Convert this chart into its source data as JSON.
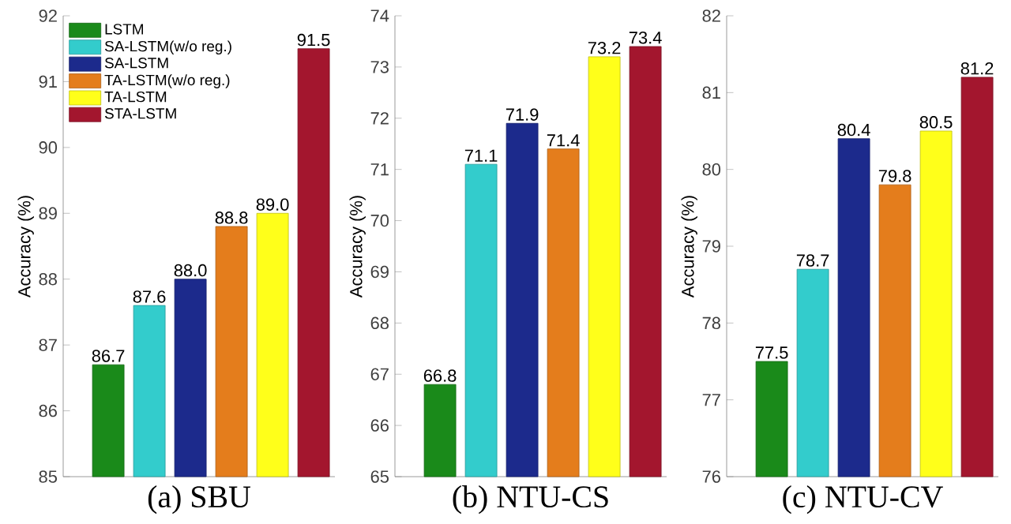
{
  "chart_data": [
    {
      "type": "bar",
      "title": "(a) SBU",
      "ylabel": "Accuracy (%)",
      "categories": [
        null
      ],
      "ylim": [
        85,
        92
      ],
      "yticks": [
        85,
        86,
        87,
        88,
        89,
        90,
        91,
        92
      ],
      "legend": "top left",
      "series": [
        {
          "name": "LSTM",
          "color": "#1a8a1a",
          "values": [
            86.7
          ],
          "value_labels": [
            "86.7"
          ]
        },
        {
          "name": "SA-LSTM(w/o reg.)",
          "color": "#33cccc",
          "values": [
            87.6
          ],
          "value_labels": [
            "87.6"
          ]
        },
        {
          "name": "SA-LSTM",
          "color": "#1c2a8c",
          "values": [
            88.0
          ],
          "value_labels": [
            "88.0"
          ]
        },
        {
          "name": "TA-LSTM(w/o reg.)",
          "color": "#e47d1c",
          "values": [
            88.8
          ],
          "value_labels": [
            "88.8"
          ]
        },
        {
          "name": "TA-LSTM",
          "color": "#ffff1a",
          "values": [
            89.0
          ],
          "value_labels": [
            "89.0"
          ]
        },
        {
          "name": "STA-LSTM",
          "color": "#a3162e",
          "values": [
            91.5
          ],
          "value_labels": [
            "91.5"
          ]
        }
      ]
    },
    {
      "type": "bar",
      "title": "(b) NTU-CS",
      "ylabel": "Accuracy (%)",
      "categories": [
        null
      ],
      "ylim": [
        65,
        74
      ],
      "yticks": [
        65,
        66,
        67,
        68,
        69,
        70,
        71,
        72,
        73,
        74
      ],
      "series": [
        {
          "color": "#1a8a1a",
          "values": [
            66.8
          ],
          "value_labels": [
            "66.8"
          ]
        },
        {
          "color": "#33cccc",
          "values": [
            71.1
          ],
          "value_labels": [
            "71.1"
          ]
        },
        {
          "color": "#1c2a8c",
          "values": [
            71.9
          ],
          "value_labels": [
            "71.9"
          ]
        },
        {
          "color": "#e47d1c",
          "values": [
            71.4
          ],
          "value_labels": [
            "71.4"
          ]
        },
        {
          "color": "#ffff1a",
          "values": [
            73.2
          ],
          "value_labels": [
            "73.2"
          ]
        },
        {
          "color": "#a3162e",
          "values": [
            73.4
          ],
          "value_labels": [
            "73.4"
          ]
        }
      ]
    },
    {
      "type": "bar",
      "title": "(c) NTU-CV",
      "ylabel": "Accuracy (%)",
      "categories": [
        null
      ],
      "ylim": [
        76,
        82
      ],
      "yticks": [
        76,
        77,
        78,
        79,
        80,
        81,
        82
      ],
      "series": [
        {
          "color": "#1a8a1a",
          "values": [
            77.5
          ],
          "value_labels": [
            "77.5"
          ]
        },
        {
          "color": "#33cccc",
          "values": [
            78.7
          ],
          "value_labels": [
            "78.7"
          ]
        },
        {
          "color": "#1c2a8c",
          "values": [
            80.4
          ],
          "value_labels": [
            "80.4"
          ]
        },
        {
          "color": "#e47d1c",
          "values": [
            79.8
          ],
          "value_labels": [
            "79.8"
          ]
        },
        {
          "color": "#ffff1a",
          "values": [
            80.5
          ],
          "value_labels": [
            "80.5"
          ]
        },
        {
          "color": "#a3162e",
          "values": [
            81.2
          ],
          "value_labels": [
            "81.2"
          ]
        }
      ]
    }
  ]
}
